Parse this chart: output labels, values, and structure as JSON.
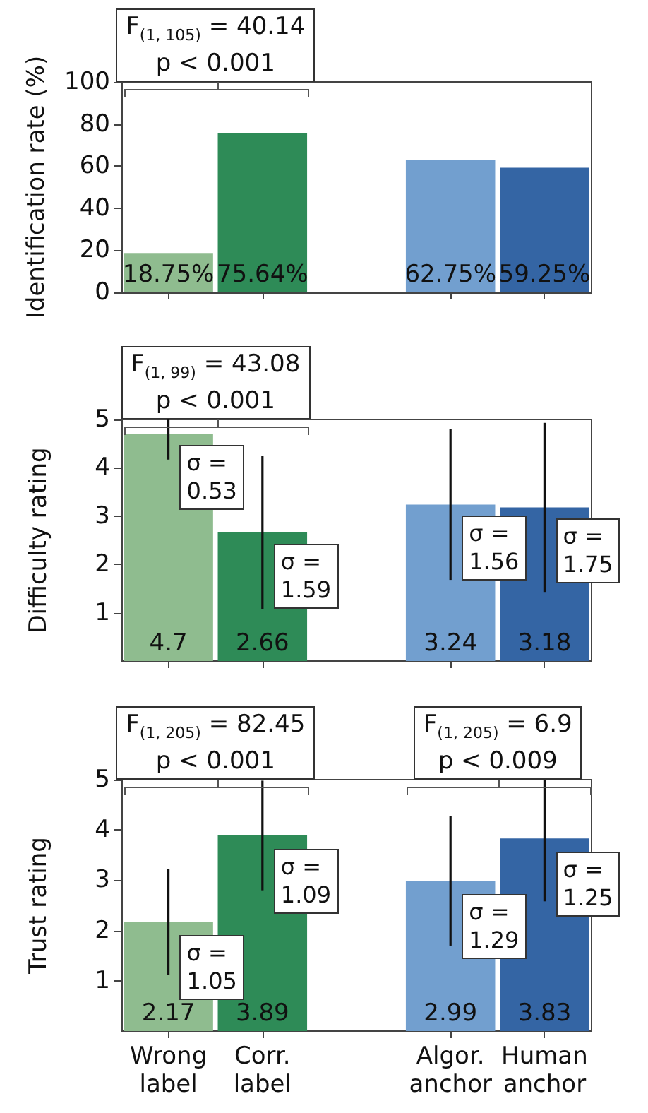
{
  "chart_data": [
    {
      "type": "bar",
      "ylabel": "Identification rate (%)",
      "categories": [
        "Wrong\nlabel",
        "Corr.\nlabel",
        null,
        "Algor.\nanchor",
        "Human\nanchor"
      ],
      "values": [
        18.75,
        75.64,
        null,
        62.75,
        59.25
      ],
      "colors": [
        "#8fbc8f",
        "#2e8b57",
        null,
        "#729fcf",
        "#3465a4"
      ],
      "value_labels": [
        "18.75%",
        "75.64%",
        null,
        "62.75%",
        "59.25%"
      ],
      "ylim": [
        0,
        100
      ],
      "yticks": [
        0,
        20,
        40,
        60,
        80,
        100
      ],
      "grid": false,
      "tick_labels": "y",
      "annotations": [
        "F$_{(1, 105)}$ = 40.14\np < 0.001"
      ]
    },
    {
      "type": "bar",
      "ylabel": "Difficulty rating",
      "categories": [
        "Wrong\nlabel",
        "Corr.\nlabel",
        null,
        "Algor.\nanchor",
        "Human\nanchor"
      ],
      "values": [
        4.7,
        2.66,
        null,
        3.24,
        3.18
      ],
      "colors": [
        "#8fbc8f",
        "#2e8b57",
        null,
        "#729fcf",
        "#3465a4"
      ],
      "errors": [
        [
          4.17,
          5
        ],
        1.59,
        null,
        1.56,
        1.75
      ],
      "data_labels": true,
      "ylim": [
        0,
        5
      ],
      "yticks": [
        1,
        2,
        3,
        4,
        5
      ],
      "grid": false,
      "tick_labels": "y",
      "annotations": [
        "F$_{(1, 99)}$ = 43.08\np < 0.001",
        {
          "text": "σ =\n0.53",
          "x": "Wrong\nlabel",
          "y": 4.7
        },
        {
          "text": "σ =\n1.59",
          "x": "Corr.\nlabel",
          "y": 2.66
        },
        {
          "text": "σ =\n1.56",
          "x": "Algor.\nanchor",
          "y": 3.24
        },
        {
          "text": "σ =\n1.75",
          "x": "Human\nanchor",
          "y": 3.18
        }
      ]
    },
    {
      "type": "bar",
      "ylabel": "Trust rating",
      "categories": [
        "Wrong\nlabel",
        "Corr.\nlabel",
        null,
        "Algor.\nanchor",
        "Human\nanchor"
      ],
      "values": [
        2.17,
        3.89,
        null,
        2.99,
        3.83
      ],
      "colors": [
        "#8fbc8f",
        "#2e8b57",
        null,
        "#729fcf",
        "#3465a4"
      ],
      "errors": [
        1.05,
        1.09,
        null,
        1.29,
        [
          2.58,
          5
        ]
      ],
      "data_labels": true,
      "ylim": [
        0,
        5
      ],
      "yticks": [
        1,
        2,
        3,
        4,
        5
      ],
      "grid": false,
      "annotations": [
        "F$_{(1, 205)}$ = 82.45\np < 0.001",
        "F$_{(1, 205)}$ = 6.9\np < 0.009",
        {
          "text": "σ =\n1.05",
          "x": "Wrong\nlabel",
          "y": 2.17
        },
        {
          "text": "σ =\n1.09",
          "x": "Corr.\nlabel",
          "y": 3.89
        },
        {
          "text": "σ =\n1.29",
          "x": "Algor.\nanchor",
          "y": 2.99
        },
        {
          "text": "σ =\n1.25",
          "x": "Human\nanchor",
          "y": 3.83
        }
      ]
    }
  ]
}
